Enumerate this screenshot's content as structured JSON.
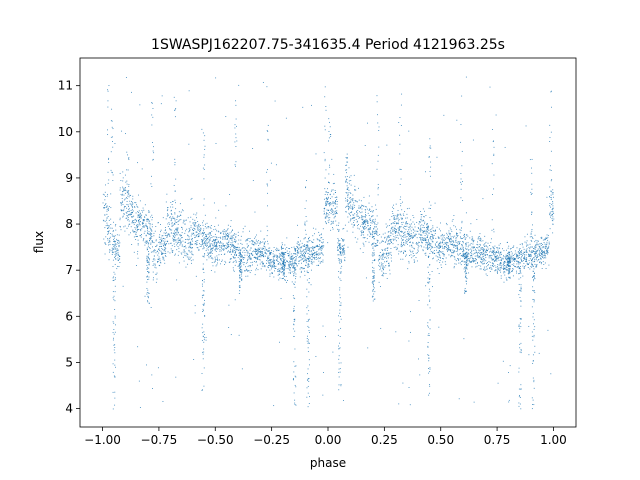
{
  "chart_data": {
    "type": "scatter",
    "title": "1SWASPJ162207.75-341635.4 Period 4121963.25s",
    "xlabel": "phase",
    "ylabel": "flux",
    "xlim": [
      -1.1,
      1.1
    ],
    "ylim": [
      3.6,
      11.6
    ],
    "xticks": [
      -1.0,
      -0.75,
      -0.5,
      -0.25,
      0.0,
      0.25,
      0.5,
      0.75,
      1.0
    ],
    "xtick_labels": [
      "−1.00",
      "−0.75",
      "−0.50",
      "−0.25",
      "0.00",
      "0.25",
      "0.50",
      "0.75",
      "1.00"
    ],
    "yticks": [
      4,
      5,
      6,
      7,
      8,
      9,
      10,
      11
    ],
    "ytick_labels": [
      "4",
      "5",
      "6",
      "7",
      "8",
      "9",
      "10",
      "11"
    ],
    "grid": false,
    "point_color": "#1f77b4",
    "segments": [
      {
        "x": [
          -1.0,
          -0.965
        ],
        "y_start": 8.2,
        "y_end": 7.9,
        "spread": 0.55
      },
      {
        "x": [
          -0.96,
          -0.925
        ],
        "y_start": 7.6,
        "y_end": 7.4,
        "spread": 0.35
      },
      {
        "x": [
          -0.925,
          -0.84
        ],
        "y_start": 8.6,
        "y_end": 8.0,
        "spread": 0.5
      },
      {
        "x": [
          -0.84,
          -0.78
        ],
        "y_start": 8.1,
        "y_end": 7.8,
        "spread": 0.35
      },
      {
        "x": [
          -0.78,
          -0.72
        ],
        "y_start": 7.2,
        "y_end": 7.6,
        "spread": 0.45
      },
      {
        "x": [
          -0.72,
          -0.6
        ],
        "y_start": 8.0,
        "y_end": 7.6,
        "spread": 0.45
      },
      {
        "x": [
          -0.6,
          -0.52
        ],
        "y_start": 7.9,
        "y_end": 7.6,
        "spread": 0.35
      },
      {
        "x": [
          -0.52,
          -0.45
        ],
        "y_start": 7.5,
        "y_end": 7.6,
        "spread": 0.35
      },
      {
        "x": [
          -0.45,
          -0.34
        ],
        "y_start": 7.6,
        "y_end": 7.3,
        "spread": 0.35
      },
      {
        "x": [
          -0.34,
          -0.26
        ],
        "y_start": 7.4,
        "y_end": 7.3,
        "spread": 0.3
      },
      {
        "x": [
          -0.26,
          -0.15
        ],
        "y_start": 7.2,
        "y_end": 7.2,
        "spread": 0.3
      },
      {
        "x": [
          -0.15,
          -0.02
        ],
        "y_start": 7.3,
        "y_end": 7.5,
        "spread": 0.3
      },
      {
        "x": [
          -0.02,
          0.04
        ],
        "y_start": 8.4,
        "y_end": 8.4,
        "spread": 0.4
      },
      {
        "x": [
          0.04,
          0.075
        ],
        "y_start": 7.6,
        "y_end": 7.4,
        "spread": 0.35
      },
      {
        "x": [
          0.075,
          0.16
        ],
        "y_start": 8.6,
        "y_end": 8.0,
        "spread": 0.5
      },
      {
        "x": [
          0.16,
          0.22
        ],
        "y_start": 8.1,
        "y_end": 7.8,
        "spread": 0.35
      },
      {
        "x": [
          0.22,
          0.28
        ],
        "y_start": 7.2,
        "y_end": 7.6,
        "spread": 0.45
      },
      {
        "x": [
          0.28,
          0.4
        ],
        "y_start": 8.0,
        "y_end": 7.6,
        "spread": 0.45
      },
      {
        "x": [
          0.4,
          0.48
        ],
        "y_start": 7.9,
        "y_end": 7.6,
        "spread": 0.35
      },
      {
        "x": [
          0.48,
          0.55
        ],
        "y_start": 7.5,
        "y_end": 7.6,
        "spread": 0.35
      },
      {
        "x": [
          0.55,
          0.66
        ],
        "y_start": 7.6,
        "y_end": 7.3,
        "spread": 0.35
      },
      {
        "x": [
          0.66,
          0.74
        ],
        "y_start": 7.4,
        "y_end": 7.3,
        "spread": 0.3
      },
      {
        "x": [
          0.74,
          0.85
        ],
        "y_start": 7.2,
        "y_end": 7.2,
        "spread": 0.3
      },
      {
        "x": [
          0.85,
          0.98
        ],
        "y_start": 7.3,
        "y_end": 7.5,
        "spread": 0.3
      },
      {
        "x": [
          0.98,
          1.0
        ],
        "y_start": 8.4,
        "y_end": 8.4,
        "spread": 0.4
      }
    ],
    "dips": [
      {
        "x": -0.95,
        "y_min": 4.0,
        "y_max": 7.8
      },
      {
        "x": -0.8,
        "y_min": 6.2,
        "y_max": 7.6
      },
      {
        "x": -0.555,
        "y_min": 4.2,
        "y_max": 7.6
      },
      {
        "x": -0.39,
        "y_min": 6.5,
        "y_max": 7.4
      },
      {
        "x": -0.2,
        "y_min": 6.8,
        "y_max": 7.4
      },
      {
        "x": -0.15,
        "y_min": 4.0,
        "y_max": 7.4
      },
      {
        "x": -0.09,
        "y_min": 4.0,
        "y_max": 7.3
      },
      {
        "x": 0.05,
        "y_min": 4.4,
        "y_max": 7.6
      },
      {
        "x": 0.2,
        "y_min": 6.2,
        "y_max": 7.6
      },
      {
        "x": 0.445,
        "y_min": 4.2,
        "y_max": 7.6
      },
      {
        "x": 0.61,
        "y_min": 6.5,
        "y_max": 7.4
      },
      {
        "x": 0.8,
        "y_min": 6.8,
        "y_max": 7.4
      },
      {
        "x": 0.85,
        "y_min": 4.0,
        "y_max": 7.4
      },
      {
        "x": 0.91,
        "y_min": 4.0,
        "y_max": 7.3
      }
    ],
    "spikes": [
      {
        "x": -0.975,
        "y_min": 8.5,
        "y_max": 11.2
      },
      {
        "x": -0.96,
        "y_min": 8.8,
        "y_max": 10.4
      },
      {
        "x": -0.89,
        "y_min": 8.6,
        "y_max": 9.6
      },
      {
        "x": -0.78,
        "y_min": 8.6,
        "y_max": 10.8
      },
      {
        "x": -0.68,
        "y_min": 8.4,
        "y_max": 10.9
      },
      {
        "x": -0.55,
        "y_min": 8.2,
        "y_max": 10.0
      },
      {
        "x": -0.41,
        "y_min": 8.0,
        "y_max": 10.8
      },
      {
        "x": -0.27,
        "y_min": 7.8,
        "y_max": 10.2
      },
      {
        "x": -0.1,
        "y_min": 7.6,
        "y_max": 9.6
      },
      {
        "x": -0.015,
        "y_min": 8.6,
        "y_max": 11.0
      },
      {
        "x": 0.005,
        "y_min": 8.8,
        "y_max": 10.4
      },
      {
        "x": 0.08,
        "y_min": 8.6,
        "y_max": 9.6
      },
      {
        "x": 0.22,
        "y_min": 8.6,
        "y_max": 10.8
      },
      {
        "x": 0.32,
        "y_min": 8.4,
        "y_max": 10.9
      },
      {
        "x": 0.45,
        "y_min": 8.2,
        "y_max": 10.0
      },
      {
        "x": 0.59,
        "y_min": 8.0,
        "y_max": 10.8
      },
      {
        "x": 0.73,
        "y_min": 7.8,
        "y_max": 10.2
      },
      {
        "x": 0.9,
        "y_min": 7.6,
        "y_max": 9.6
      },
      {
        "x": 0.985,
        "y_min": 8.6,
        "y_max": 11.0
      }
    ]
  }
}
